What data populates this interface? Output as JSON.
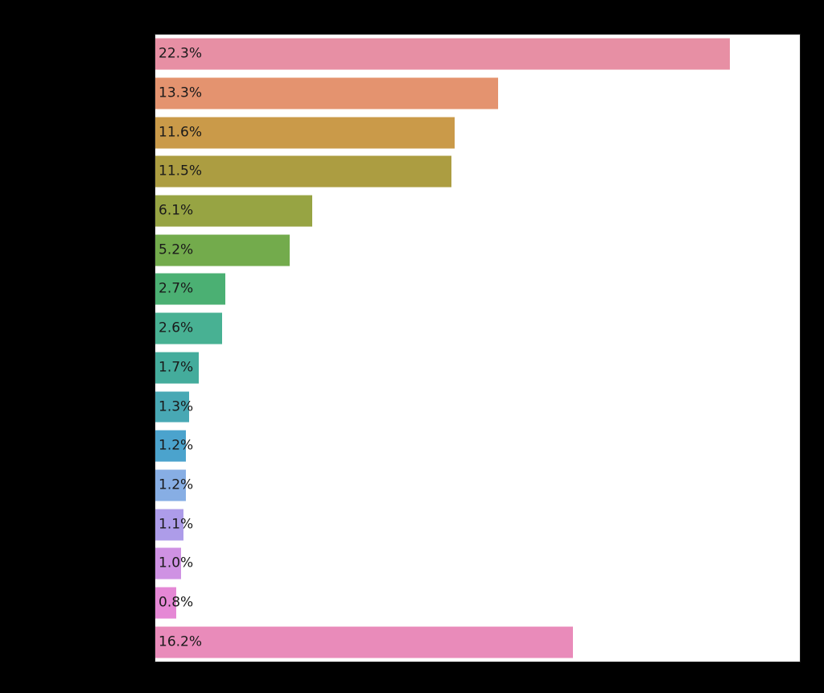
{
  "page": {
    "background_color": "#000000",
    "plot_background_color": "#ffffff",
    "title_visible": false,
    "axis_tick_labels_visible": false,
    "category_labels_visible": false
  },
  "chart_data": {
    "type": "bar",
    "orientation": "horizontal",
    "title": "",
    "xlabel": "",
    "ylabel": "",
    "xlim": [
      0,
      25
    ],
    "grid": false,
    "legend": null,
    "value_label_color": "#1a1a1a",
    "categories": [
      "",
      "",
      "",
      "",
      "",
      "",
      "",
      "",
      "",
      "",
      "",
      "",
      "",
      "",
      "",
      ""
    ],
    "bars": [
      {
        "value": 22.3,
        "label": "22.3%",
        "color": "#e78fa4"
      },
      {
        "value": 13.3,
        "label": "13.3%",
        "color": "#e4936f"
      },
      {
        "value": 11.6,
        "label": "11.6%",
        "color": "#ca9a49"
      },
      {
        "value": 11.5,
        "label": "11.5%",
        "color": "#ac9d41"
      },
      {
        "value": 6.1,
        "label": "6.1%",
        "color": "#97a443"
      },
      {
        "value": 5.2,
        "label": "5.2%",
        "color": "#73ab4c"
      },
      {
        "value": 2.7,
        "label": "2.7%",
        "color": "#4bb073"
      },
      {
        "value": 2.6,
        "label": "2.6%",
        "color": "#48b193"
      },
      {
        "value": 1.7,
        "label": "1.7%",
        "color": "#44ac9c"
      },
      {
        "value": 1.3,
        "label": "1.3%",
        "color": "#48a8b4"
      },
      {
        "value": 1.2,
        "label": "1.2%",
        "color": "#4ba3cd"
      },
      {
        "value": 1.2,
        "label": "1.2%",
        "color": "#87aee4"
      },
      {
        "value": 1.1,
        "label": "1.1%",
        "color": "#ad9ce9"
      },
      {
        "value": 1.0,
        "label": "1.0%",
        "color": "#cf92e3"
      },
      {
        "value": 0.8,
        "label": "0.8%",
        "color": "#e588d5"
      },
      {
        "value": 16.2,
        "label": "16.2%",
        "color": "#e98bba"
      }
    ]
  }
}
